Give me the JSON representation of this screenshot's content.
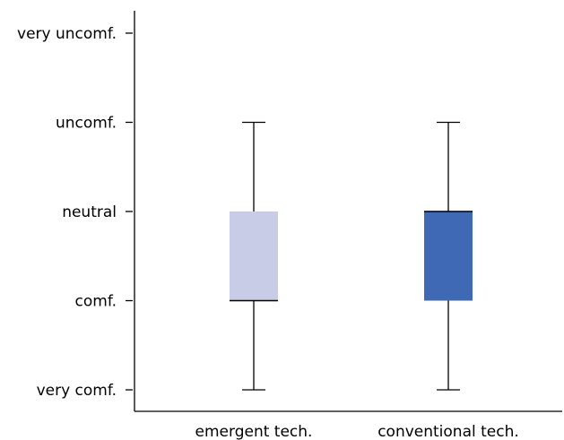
{
  "chart_data": {
    "type": "box",
    "y_levels": [
      "very comf.",
      "comf.",
      "neutral",
      "uncomf.",
      "very uncomf."
    ],
    "ylim": [
      1,
      5
    ],
    "categories": [
      "emergent tech.",
      "conventional tech."
    ],
    "boxes": [
      {
        "category": "emergent tech.",
        "whisker_low": 1,
        "q1": 2,
        "median": 2,
        "q3": 3,
        "whisker_high": 4,
        "color": "#c8cce6"
      },
      {
        "category": "conventional tech.",
        "whisker_low": 1,
        "q1": 2,
        "median": 3,
        "q3": 3,
        "whisker_high": 4,
        "color": "#3f69b4"
      }
    ]
  }
}
